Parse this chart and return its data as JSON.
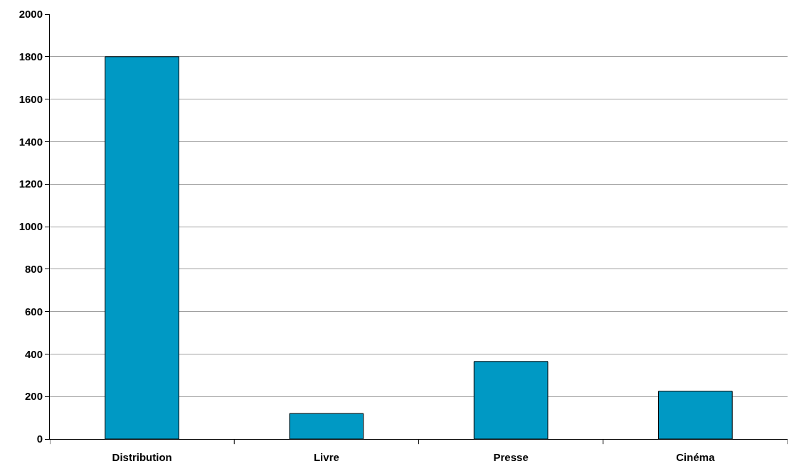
{
  "chart_data": {
    "type": "bar",
    "categories": [
      "Distribution",
      "Livre",
      "Presse",
      "Cinéma"
    ],
    "values": [
      1800,
      120,
      365,
      225
    ],
    "color": "#0099c4",
    "ylim": [
      0,
      2000
    ],
    "yticks": [
      0,
      200,
      400,
      600,
      800,
      1000,
      1200,
      1400,
      1600,
      1800,
      2000
    ],
    "grid": "y"
  }
}
